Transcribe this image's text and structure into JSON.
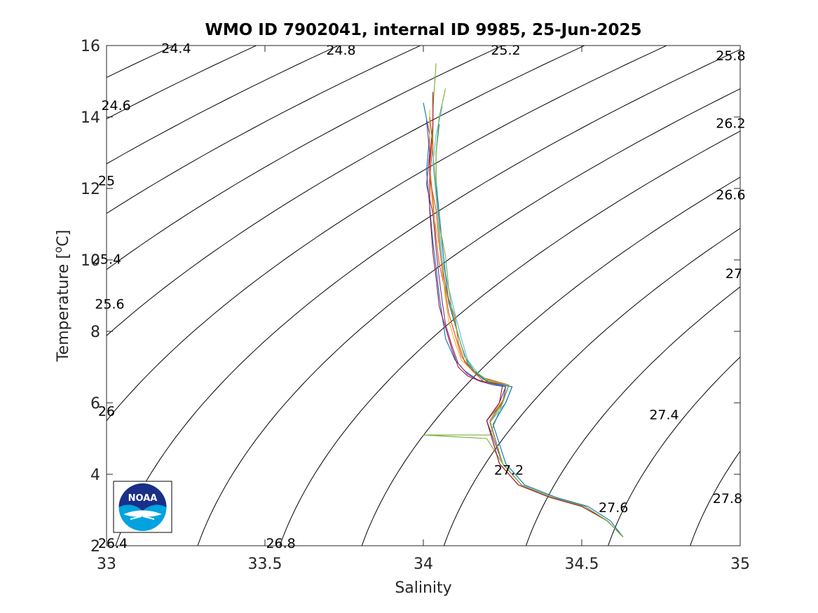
{
  "chart_data": {
    "type": "line",
    "title": "WMO ID 7902041, internal ID 9985, 25-Jun-2025",
    "xlabel": "Salinity",
    "ylabel": "Temperature [",
    "ylabel_unit": "C]",
    "ylabel_superscript": "o",
    "xlim": [
      33,
      35
    ],
    "ylim": [
      2,
      16
    ],
    "xticks": [
      33,
      33.5,
      34,
      34.5,
      35
    ],
    "xtick_labels": [
      "33",
      "33.5",
      "34",
      "34.5",
      "35"
    ],
    "yticks": [
      2,
      4,
      6,
      8,
      10,
      12,
      14,
      16
    ],
    "ytick_labels": [
      "2",
      "4",
      "6",
      "8",
      "10",
      "12",
      "14",
      "16"
    ],
    "grid": false,
    "legend": "none",
    "density_contours": {
      "levels": [
        24.4,
        24.6,
        24.8,
        25.0,
        25.2,
        25.4,
        25.6,
        25.8,
        26.0,
        26.2,
        26.4,
        26.6,
        26.8,
        27.0,
        27.2,
        27.4,
        27.6,
        27.8
      ],
      "labels": [
        {
          "text": "24.4",
          "x": 33.22,
          "y": 15.9
        },
        {
          "text": "24.8",
          "x": 33.74,
          "y": 15.85
        },
        {
          "text": "25.2",
          "x": 34.26,
          "y": 15.85
        },
        {
          "text": "25.8",
          "x": 34.97,
          "y": 15.7
        },
        {
          "text": "24.6",
          "x": 33.03,
          "y": 14.3
        },
        {
          "text": "26.2",
          "x": 34.97,
          "y": 13.8
        },
        {
          "text": "25",
          "x": 33.0,
          "y": 12.2
        },
        {
          "text": "26.6",
          "x": 34.97,
          "y": 11.8
        },
        {
          "text": "25.4",
          "x": 33.0,
          "y": 10.0
        },
        {
          "text": "27",
          "x": 34.98,
          "y": 9.6
        },
        {
          "text": "25.6",
          "x": 33.01,
          "y": 8.75
        },
        {
          "text": "26",
          "x": 33.0,
          "y": 5.75
        },
        {
          "text": "27.4",
          "x": 34.76,
          "y": 5.65
        },
        {
          "text": "27.2",
          "x": 34.27,
          "y": 4.1
        },
        {
          "text": "27.6",
          "x": 34.6,
          "y": 3.05
        },
        {
          "text": "27.8",
          "x": 34.96,
          "y": 3.3
        },
        {
          "text": "26.4",
          "x": 33.02,
          "y": 2.05
        },
        {
          "text": "26.8",
          "x": 33.55,
          "y": 2.05
        }
      ]
    },
    "series": [
      {
        "color": "#0072BD",
        "x": [
          34.0,
          34.02,
          34.01,
          34.02,
          34.03,
          34.04,
          34.05,
          34.06,
          34.07,
          34.1,
          34.13,
          34.17,
          34.21,
          34.26,
          34.25,
          34.2,
          34.24,
          34.3,
          34.4,
          34.5,
          34.58,
          34.63
        ],
        "y": [
          14.4,
          13.5,
          12.5,
          11.5,
          10.5,
          9.8,
          9.0,
          8.4,
          7.8,
          7.2,
          6.9,
          6.65,
          6.55,
          6.45,
          6.0,
          5.5,
          4.3,
          3.7,
          3.35,
          3.1,
          2.7,
          2.25
        ]
      },
      {
        "color": "#D95319",
        "x": [
          34.03,
          34.03,
          34.02,
          34.03,
          34.04,
          34.05,
          34.07,
          34.08,
          34.1,
          34.12,
          34.15,
          34.19,
          34.23,
          34.27,
          34.25,
          34.21,
          34.25,
          34.31,
          34.41,
          34.51,
          34.58,
          34.63
        ],
        "y": [
          14.6,
          13.6,
          12.6,
          11.7,
          10.6,
          9.9,
          9.1,
          8.5,
          7.9,
          7.3,
          6.95,
          6.7,
          6.6,
          6.5,
          6.0,
          5.45,
          4.3,
          3.7,
          3.35,
          3.1,
          2.7,
          2.25
        ]
      },
      {
        "color": "#EDB120",
        "x": [
          34.02,
          34.02,
          34.02,
          34.03,
          34.05,
          34.06,
          34.07,
          34.08,
          34.1,
          34.12,
          34.16,
          34.2,
          34.24,
          34.27,
          34.25,
          34.2,
          34.24,
          34.3,
          34.4,
          34.5,
          34.58,
          34.63
        ],
        "y": [
          14.2,
          13.4,
          12.4,
          11.4,
          10.4,
          9.7,
          8.9,
          8.3,
          7.7,
          7.2,
          6.85,
          6.6,
          6.55,
          6.5,
          6.05,
          5.5,
          4.3,
          3.7,
          3.35,
          3.1,
          2.7,
          2.25
        ]
      },
      {
        "color": "#7E2F8E",
        "x": [
          34.01,
          34.02,
          34.01,
          34.03,
          34.04,
          34.05,
          34.06,
          34.07,
          34.09,
          34.11,
          34.14,
          34.18,
          34.22,
          34.26,
          34.24,
          34.2,
          34.25,
          34.31,
          34.41,
          34.51,
          34.58,
          34.63
        ],
        "y": [
          13.9,
          13.0,
          12.1,
          11.3,
          10.3,
          9.5,
          8.8,
          8.2,
          7.6,
          7.1,
          6.8,
          6.6,
          6.5,
          6.45,
          6.0,
          5.5,
          4.3,
          3.7,
          3.35,
          3.1,
          2.7,
          2.25
        ]
      },
      {
        "color": "#77AC30",
        "x": [
          34.04,
          34.03,
          34.03,
          34.04,
          34.05,
          34.06,
          34.07,
          34.09,
          34.11,
          34.13,
          34.16,
          34.19,
          34.23,
          34.27,
          34.25,
          34.21,
          34.0,
          34.2,
          34.25,
          34.31,
          34.41,
          34.51,
          34.58,
          34.63
        ],
        "y": [
          15.5,
          14.2,
          13.0,
          12.0,
          10.9,
          10.0,
          9.2,
          8.5,
          7.9,
          7.3,
          6.9,
          6.65,
          6.55,
          6.5,
          6.0,
          5.1,
          5.1,
          5.0,
          4.3,
          3.7,
          3.35,
          3.1,
          2.7,
          2.25
        ]
      },
      {
        "color": "#4DBEEE",
        "x": [
          34.06,
          34.04,
          34.03,
          34.04,
          34.05,
          34.06,
          34.08,
          34.1,
          34.12,
          34.14,
          34.17,
          34.2,
          34.24,
          34.28,
          34.26,
          34.21,
          34.25,
          34.31,
          34.41,
          34.51,
          34.58,
          34.63
        ],
        "y": [
          14.3,
          13.5,
          12.7,
          11.8,
          10.8,
          10.0,
          9.2,
          8.5,
          7.8,
          7.2,
          6.85,
          6.6,
          6.5,
          6.45,
          6.0,
          5.45,
          4.3,
          3.7,
          3.35,
          3.1,
          2.7,
          2.25
        ]
      },
      {
        "color": "#A2142F",
        "x": [
          34.03,
          34.03,
          34.02,
          34.02,
          34.03,
          34.04,
          34.05,
          34.07,
          34.09,
          34.11,
          34.14,
          34.18,
          34.22,
          34.25,
          34.24,
          34.2,
          34.24,
          34.3,
          34.4,
          34.5,
          34.58,
          34.63
        ],
        "y": [
          14.7,
          13.8,
          12.8,
          11.4,
          10.2,
          9.5,
          8.7,
          8.1,
          7.5,
          7.0,
          6.75,
          6.6,
          6.55,
          6.5,
          6.0,
          5.5,
          4.3,
          3.7,
          3.35,
          3.1,
          2.7,
          2.25
        ]
      },
      {
        "color": "#0072BD",
        "x": [
          34.05,
          34.04,
          34.04,
          34.05,
          34.06,
          34.07,
          34.08,
          34.1,
          34.12,
          34.14,
          34.17,
          34.21,
          34.25,
          34.28,
          34.26,
          34.22,
          34.26,
          34.32,
          34.42,
          34.52,
          34.59,
          34.63
        ],
        "y": [
          13.8,
          13.0,
          12.2,
          11.3,
          10.4,
          9.6,
          8.8,
          8.2,
          7.6,
          7.1,
          6.8,
          6.55,
          6.5,
          6.45,
          6.0,
          5.4,
          4.3,
          3.7,
          3.35,
          3.1,
          2.7,
          2.25
        ]
      },
      {
        "color": "#D95319",
        "x": [
          34.02,
          34.03,
          34.02,
          34.04,
          34.05,
          34.06,
          34.08,
          34.1,
          34.11,
          34.13,
          34.16,
          34.19,
          34.23,
          34.27,
          34.25,
          34.21,
          34.25,
          34.31,
          34.41,
          34.51,
          34.58,
          34.63
        ],
        "y": [
          14.0,
          13.2,
          12.3,
          11.4,
          10.5,
          9.7,
          8.9,
          8.4,
          7.7,
          7.15,
          6.85,
          6.6,
          6.55,
          6.5,
          6.05,
          5.5,
          4.3,
          3.7,
          3.35,
          3.1,
          2.7,
          2.25
        ]
      },
      {
        "color": "#77AC30",
        "x": [
          34.07,
          34.05,
          34.04,
          34.04,
          34.05,
          34.07,
          34.08,
          34.09,
          34.11,
          34.13,
          34.16,
          34.2,
          34.24,
          34.27,
          34.25,
          34.21,
          34.25,
          34.31,
          34.41,
          34.51,
          34.58,
          34.63
        ],
        "y": [
          14.8,
          14.0,
          13.0,
          12.0,
          11.0,
          10.1,
          9.2,
          8.6,
          7.9,
          7.3,
          6.9,
          6.65,
          6.55,
          6.5,
          6.0,
          5.45,
          4.3,
          3.7,
          3.35,
          3.1,
          2.7,
          2.25
        ]
      }
    ]
  }
}
